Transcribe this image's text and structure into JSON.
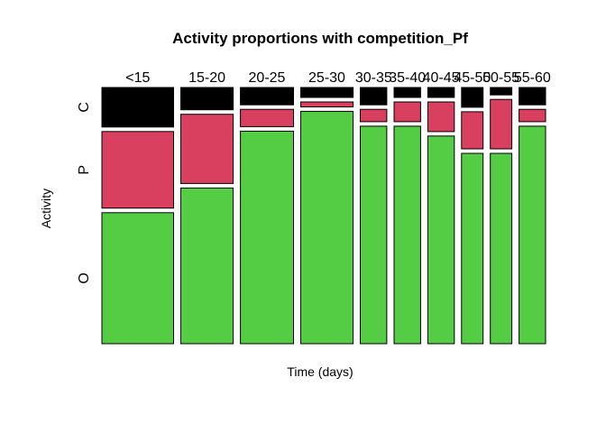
{
  "chart_data": {
    "type": "mosaic",
    "title": "Activity proportions with competition_Pf",
    "xlabel": "Time (days)",
    "ylabel": "Activity",
    "categories": [
      "<15",
      "15-20",
      "20-25",
      "25-30",
      "30-35",
      "35-40",
      "40-45",
      "45-50",
      "50-55",
      "55-60"
    ],
    "column_widths": [
      1.0,
      0.73,
      0.74,
      0.73,
      0.37,
      0.37,
      0.37,
      0.3,
      0.3,
      0.37
    ],
    "levels": [
      "O",
      "P",
      "C"
    ],
    "level_colors": [
      "#54cc43",
      "#d93f5e",
      "#000000"
    ],
    "proportions": {
      "O": [
        0.53,
        0.63,
        0.86,
        0.94,
        0.88,
        0.88,
        0.84,
        0.77,
        0.77,
        0.88
      ],
      "P": [
        0.31,
        0.28,
        0.07,
        0.02,
        0.05,
        0.08,
        0.12,
        0.15,
        0.2,
        0.05
      ],
      "C": [
        0.16,
        0.09,
        0.07,
        0.04,
        0.07,
        0.04,
        0.04,
        0.08,
        0.03,
        0.07
      ]
    }
  }
}
